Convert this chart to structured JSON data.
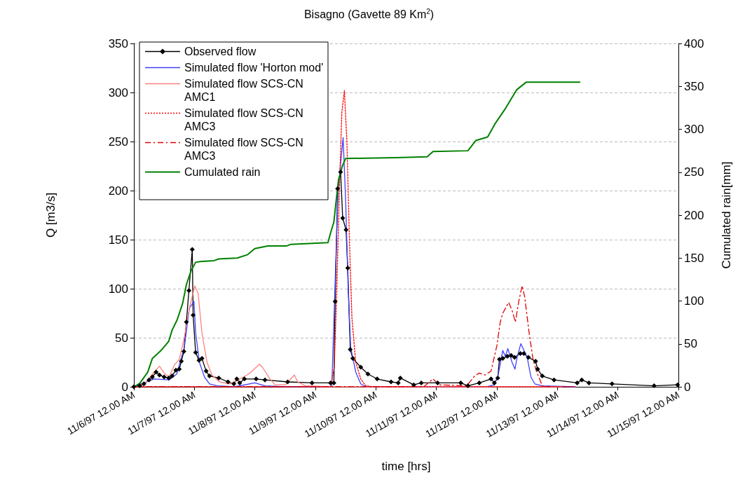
{
  "chart_data": {
    "type": "line",
    "title": "Bisagno (Gavette 89 Km$^{2}$)",
    "xlabel": "time [hrs]",
    "ylabel": "Q [m3/s]",
    "y2label": "Cumulated rain[mm]",
    "xlim": [
      "1997-11-06T00:00",
      "1997-11-15T00:00"
    ],
    "xticks": [
      {
        "value": "1997-11-06T00:00",
        "label": "11/6/97 12.00 AM"
      },
      {
        "value": "1997-11-07T00:00",
        "label": "11/7/97 12.00 AM"
      },
      {
        "value": "1997-11-08T00:00",
        "label": "11/8/97 12.00 AM"
      },
      {
        "value": "1997-11-09T00:00",
        "label": "11/9/97 12.00 AM"
      },
      {
        "value": "1997-11-10T00:00",
        "label": "11/10/97 12.00 AM"
      },
      {
        "value": "1997-11-11T00:00",
        "label": "11/11/97 12.00 AM"
      },
      {
        "value": "1997-11-12T00:00",
        "label": "11/12/97 12.00 AM"
      },
      {
        "value": "1997-11-13T00:00",
        "label": "11/13/97 12.00 AM"
      },
      {
        "value": "1997-11-14T00:00",
        "label": "11/14/97 12.00 AM"
      },
      {
        "value": "1997-11-15T00:00",
        "label": "11/15/97 12.00 AM"
      }
    ],
    "ylim": [
      0,
      350
    ],
    "yticks": [
      0,
      50,
      100,
      150,
      200,
      250,
      300,
      350
    ],
    "y2lim": [
      0,
      400
    ],
    "y2ticks": [
      0,
      50,
      100,
      150,
      200,
      250,
      300,
      350,
      400
    ],
    "grid": "y",
    "legend": "top left",
    "series": [
      {
        "name": "Observed flow",
        "color": "#000000",
        "marker": "diamond",
        "line_style": "solid",
        "x": [
          "1997-11-06T00:00",
          "1997-11-06T02:20",
          "1997-11-06T04:00",
          "1997-11-06T06:00",
          "1997-11-06T07:20",
          "1997-11-06T08:50",
          "1997-11-06T10:10",
          "1997-11-06T12:00",
          "1997-11-06T13:50",
          "1997-11-06T15:10",
          "1997-11-06T16:40",
          "1997-11-06T18:00",
          "1997-11-06T18:50",
          "1997-11-06T19:50",
          "1997-11-06T20:50",
          "1997-11-06T21:50",
          "1997-11-06T23:10",
          "1997-11-06T23:30",
          "1997-11-07T00:30",
          "1997-11-07T01:50",
          "1997-11-07T03:00",
          "1997-11-07T04:40",
          "1997-11-07T06:00",
          "1997-11-07T09:40",
          "1997-11-07T13:20",
          "1997-11-07T15:40",
          "1997-11-07T16:50",
          "1997-11-07T18:00",
          "1997-11-07T19:50",
          "1997-11-08T00:30",
          "1997-11-08T04:00",
          "1997-11-08T13:00",
          "1997-11-08T22:40",
          "1997-11-09T06:00",
          "1997-11-09T07:20",
          "1997-11-09T07:50",
          "1997-11-09T08:50",
          "1997-11-09T10:00",
          "1997-11-09T10:50",
          "1997-11-09T12:10",
          "1997-11-09T12:50",
          "1997-11-09T13:50",
          "1997-11-09T14:50",
          "1997-11-09T18:00",
          "1997-11-09T20:50",
          "1997-11-10T00:30",
          "1997-11-10T06:00",
          "1997-11-10T08:50",
          "1997-11-10T09:40",
          "1997-11-10T15:00",
          "1997-11-10T18:00",
          "1997-11-11T00:30",
          "1997-11-11T09:40",
          "1997-11-11T12:30",
          "1997-11-11T17:00",
          "1997-11-11T21:40",
          "1997-11-11T23:00",
          "1997-11-12T00:20",
          "1997-11-12T01:00",
          "1997-11-12T02:20",
          "1997-11-12T04:10",
          "1997-11-12T05:40",
          "1997-11-12T07:00",
          "1997-11-12T09:20",
          "1997-11-12T10:40",
          "1997-11-12T12:30",
          "1997-11-12T15:20",
          "1997-11-12T16:10",
          "1997-11-12T18:00",
          "1997-11-12T22:40",
          "1997-11-13T07:50",
          "1997-11-13T09:40",
          "1997-11-13T12:30",
          "1997-11-13T21:40",
          "1997-11-14T14:20",
          "1997-11-14T23:40"
        ],
        "values": [
          0,
          1,
          3,
          7,
          10,
          15,
          12,
          10,
          9,
          11,
          17,
          18,
          26,
          36,
          66,
          98,
          140,
          73,
          35,
          27,
          29,
          16,
          11,
          9,
          5,
          3,
          8,
          4,
          8,
          8,
          7,
          5,
          4,
          4,
          4,
          87,
          202,
          219,
          172,
          160,
          121,
          38,
          29,
          20,
          13,
          8,
          5,
          4,
          9,
          2,
          4,
          4,
          4,
          1,
          4,
          8,
          4,
          9,
          28,
          29,
          31,
          32,
          30,
          34,
          34,
          30,
          26,
          18,
          11,
          7,
          4,
          7,
          4,
          3,
          1,
          2
        ]
      },
      {
        "name": "Simulated flow 'Horton mod'",
        "color": "#4040ff",
        "marker": "none",
        "line_style": "solid",
        "x": [
          "1997-11-06T00:00",
          "1997-11-06T08:00",
          "1997-11-06T14:00",
          "1997-11-06T17:00",
          "1997-11-06T20:00",
          "1997-11-06T22:00",
          "1997-11-06T23:50",
          "1997-11-07T00:30",
          "1997-11-07T02:00",
          "1997-11-07T04:00",
          "1997-11-07T06:00",
          "1997-11-07T09:00",
          "1997-11-07T16:00",
          "1997-11-08T00:00",
          "1997-11-08T04:00",
          "1997-11-08T12:00",
          "1997-11-09T06:30",
          "1997-11-09T07:30",
          "1997-11-09T09:00",
          "1997-11-09T11:00",
          "1997-11-09T12:00",
          "1997-11-09T13:00",
          "1997-11-09T14:00",
          "1997-11-09T16:00",
          "1997-11-09T18:00",
          "1997-11-09T20:00",
          "1997-11-11T20:00",
          "1997-11-11T23:00",
          "1997-11-12T00:30",
          "1997-11-12T02:20",
          "1997-11-12T03:20",
          "1997-11-12T04:20",
          "1997-11-12T06:00",
          "1997-11-12T07:10",
          "1997-11-12T08:00",
          "1997-11-12T09:30",
          "1997-11-12T12:00",
          "1997-11-12T13:30",
          "1997-11-12T15:00",
          "1997-11-12T18:00",
          "1997-11-13T07:00"
        ],
        "values": [
          0,
          8,
          7,
          13,
          40,
          80,
          87,
          55,
          25,
          10,
          3,
          1,
          0,
          4,
          1,
          0,
          0,
          80,
          200,
          254,
          190,
          100,
          40,
          15,
          3,
          0,
          0,
          2,
          12,
          37,
          31,
          39,
          25,
          18,
          30,
          44,
          30,
          10,
          3,
          1,
          0
        ]
      },
      {
        "name": "Simulated flow SCS-CN AMC1",
        "color": "#ff8080",
        "marker": "none",
        "line_style": "solid",
        "x": [
          "1997-11-06T00:00",
          "1997-11-06T04:00",
          "1997-11-06T08:00",
          "1997-11-06T10:10",
          "1997-11-06T12:00",
          "1997-11-06T14:00",
          "1997-11-06T16:00",
          "1997-11-06T18:00",
          "1997-11-06T20:00",
          "1997-11-06T22:00",
          "1997-11-07T00:10",
          "1997-11-07T01:30",
          "1997-11-07T03:00",
          "1997-11-07T05:00",
          "1997-11-07T07:00",
          "1997-11-07T10:00",
          "1997-11-07T14:00",
          "1997-11-07T16:00",
          "1997-11-07T20:50",
          "1997-11-07T22:00",
          "1997-11-08T01:50",
          "1997-11-08T03:00",
          "1997-11-08T06:00",
          "1997-11-08T08:00",
          "1997-11-08T12:00",
          "1997-11-08T15:40",
          "1997-11-08T17:00",
          "1997-11-08T20:00",
          "1997-11-09T06:00",
          "1997-11-13T02:00"
        ],
        "values": [
          0,
          2,
          15,
          21,
          14,
          10,
          22,
          28,
          50,
          80,
          103,
          95,
          55,
          25,
          12,
          5,
          3,
          5,
          12,
          14,
          23,
          20,
          8,
          2,
          2,
          12,
          5,
          1,
          0,
          0
        ]
      },
      {
        "name": "Simulated flow SCS-CN AMC3",
        "color": "#ff0000",
        "marker": "none",
        "line_style": "dotted",
        "x": [
          "1997-11-06T00:00",
          "1997-11-09T06:00",
          "1997-11-09T07:30",
          "1997-11-09T08:30",
          "1997-11-09T09:30",
          "1997-11-09T10:30",
          "1997-11-09T11:30",
          "1997-11-09T12:30",
          "1997-11-09T13:30",
          "1997-11-09T14:30",
          "1997-11-09T16:00",
          "1997-11-09T18:00",
          "1997-11-09T20:00",
          "1997-11-09T23:00",
          "1997-11-13T07:00"
        ],
        "values": [
          0,
          0,
          20,
          100,
          200,
          280,
          302,
          250,
          150,
          70,
          25,
          8,
          1,
          0,
          0
        ]
      },
      {
        "name": "Simulated flow SCS-CN AMC3",
        "color": "#e00000",
        "marker": "none",
        "line_style": "dashed",
        "x": [
          "1997-11-06T00:00",
          "1997-11-10T19:00",
          "1997-11-10T22:40",
          "1997-11-11T01:00",
          "1997-11-11T12:00",
          "1997-11-11T15:10",
          "1997-11-11T17:00",
          "1997-11-11T19:20",
          "1997-11-11T21:40",
          "1997-11-12T00:00",
          "1997-11-12T01:20",
          "1997-11-12T02:20",
          "1997-11-12T04:40",
          "1997-11-12T06:00",
          "1997-11-12T07:20",
          "1997-11-12T08:40",
          "1997-11-12T10:00",
          "1997-11-12T11:00",
          "1997-11-12T12:50",
          "1997-11-12T14:20",
          "1997-11-12T15:40",
          "1997-11-12T18:00",
          "1997-11-12T21:00"
        ],
        "values": [
          0,
          0,
          8,
          2,
          1,
          11,
          14,
          12,
          16,
          42,
          66,
          75,
          86,
          78,
          66,
          87,
          103,
          92,
          54,
          28,
          16,
          1,
          0
        ]
      },
      {
        "name": "Cumulated rain",
        "color": "#008000",
        "marker": "none",
        "line_style": "solid",
        "axis": "y2",
        "x": [
          "1997-11-06T00:00",
          "1997-11-06T02:20",
          "1997-11-06T05:30",
          "1997-11-06T07:20",
          "1997-11-06T10:40",
          "1997-11-06T13:50",
          "1997-11-06T15:10",
          "1997-11-06T17:10",
          "1997-11-06T19:20",
          "1997-11-06T20:50",
          "1997-11-06T22:40",
          "1997-11-07T00:30",
          "1997-11-07T02:20",
          "1997-11-07T07:50",
          "1997-11-07T09:40",
          "1997-11-07T17:00",
          "1997-11-07T21:10",
          "1997-11-08T00:00",
          "1997-11-08T05:10",
          "1997-11-08T12:30",
          "1997-11-08T14:20",
          "1997-11-09T05:00",
          "1997-11-09T06:00",
          "1997-11-09T07:20",
          "1997-11-09T08:20",
          "1997-11-09T09:10",
          "1997-11-09T10:40",
          "1997-11-09T12:00",
          "1997-11-10T07:50",
          "1997-11-10T20:20",
          "1997-11-10T22:40",
          "1997-11-11T12:30",
          "1997-11-11T15:40",
          "1997-11-11T20:20",
          "1997-11-11T23:10",
          "1997-11-12T03:20",
          "1997-11-12T07:50",
          "1997-11-12T11:40",
          "1997-11-13T08:50"
        ],
        "values": [
          0,
          4,
          17,
          33,
          42,
          53,
          66,
          78,
          97,
          119,
          135,
          145,
          146,
          147,
          149,
          150,
          154,
          161,
          164,
          164,
          166,
          168,
          179,
          192,
          219,
          241,
          257,
          266,
          267,
          268,
          274,
          275,
          287,
          291,
          306,
          324,
          346,
          355,
          355
        ]
      }
    ]
  }
}
